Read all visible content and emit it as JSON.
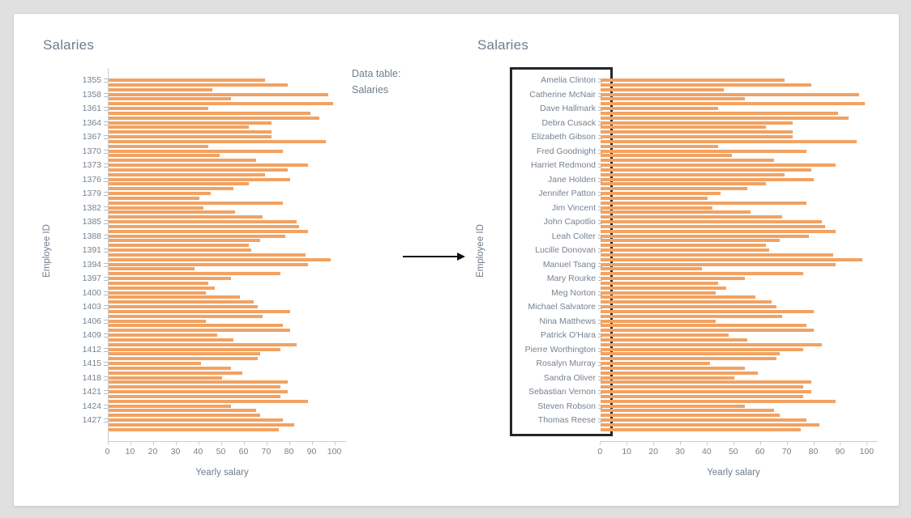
{
  "page": {
    "background": "#e0e0e0",
    "card_background": "#ffffff"
  },
  "colors": {
    "bar": "#f2a262",
    "title": "#6f7d8d",
    "tick_label": "#76828f",
    "axis_line": "#c8cdd2",
    "tick_mark": "#b2bfca",
    "highlight_box": "#23272b",
    "arrow": "#111111"
  },
  "annotation": {
    "line1": "Data table:",
    "line2": "Salaries"
  },
  "left_chart": {
    "title": "Salaries",
    "y_axis_label": "Employee ID",
    "x_axis_label": "Yearly salary"
  },
  "right_chart": {
    "title": "Salaries",
    "y_axis_label": "Employee ID",
    "x_axis_label": "Yearly salary"
  },
  "chart_data": [
    {
      "id": "left",
      "type": "bar",
      "orientation": "horizontal",
      "title": "Salaries",
      "xlabel": "Yearly salary",
      "ylabel": "Employee ID",
      "xlim": [
        0,
        100
      ],
      "x_ticks": [
        0,
        10,
        20,
        30,
        40,
        50,
        60,
        70,
        80,
        90,
        100
      ],
      "grid": false,
      "legend": false,
      "tick_labels": [
        "1355",
        "1358",
        "1361",
        "1364",
        "1367",
        "1370",
        "1373",
        "1376",
        "1379",
        "1382",
        "1385",
        "1388",
        "1391",
        "1394",
        "1397",
        "1400",
        "1403",
        "1406",
        "1409",
        "1412",
        "1415",
        "1418",
        "1421",
        "1424",
        "1427"
      ],
      "label_every": 3,
      "values": [
        69,
        79,
        46,
        97,
        54,
        99,
        44,
        89,
        93,
        72,
        62,
        72,
        72,
        96,
        44,
        77,
        49,
        65,
        88,
        79,
        69,
        80,
        62,
        55,
        45,
        40,
        77,
        42,
        56,
        68,
        83,
        84,
        88,
        78,
        67,
        62,
        63,
        87,
        98,
        88,
        38,
        76,
        54,
        44,
        47,
        43,
        58,
        64,
        66,
        80,
        68,
        43,
        77,
        80,
        48,
        55,
        83,
        76,
        67,
        66,
        41,
        54,
        59,
        50,
        79,
        76,
        79,
        76,
        88,
        54,
        65,
        67,
        77,
        82,
        75
      ]
    },
    {
      "id": "right",
      "type": "bar",
      "orientation": "horizontal",
      "title": "Salaries",
      "xlabel": "Yearly salary",
      "ylabel": "Employee ID",
      "xlim": [
        0,
        100
      ],
      "x_ticks": [
        0,
        10,
        20,
        30,
        40,
        50,
        60,
        70,
        80,
        90,
        100
      ],
      "grid": false,
      "legend": false,
      "highlight_box_around_labels": true,
      "tick_labels": [
        "Amelia Clinton",
        "Catherine McNair",
        "Dave Hallmark",
        "Debra Cusack",
        "Elizabeth Gibson",
        "Fred Goodnight",
        "Harriet Redmond",
        "Jane Holden",
        "Jennifer Patton",
        "Jim Vincent",
        "John Capotlio",
        "Leah Colter",
        "Lucille Donovan",
        "Manuel Tsang",
        "Mary Rourke",
        "Meg Norton",
        "Michael Salvatore",
        "Nina Matthews",
        "Patrick O'Hara",
        "Pierre Worthington",
        "Rosalyn Murray",
        "Sandra Oliver",
        "Sebastian Vernon",
        "Steven Robson",
        "Thomas Reese"
      ],
      "label_every": 3,
      "values": [
        69,
        79,
        46,
        97,
        54,
        99,
        44,
        89,
        93,
        72,
        62,
        72,
        72,
        96,
        44,
        77,
        49,
        65,
        88,
        79,
        69,
        80,
        62,
        55,
        45,
        40,
        77,
        42,
        56,
        68,
        83,
        84,
        88,
        78,
        67,
        62,
        63,
        87,
        98,
        88,
        38,
        76,
        54,
        44,
        47,
        43,
        58,
        64,
        66,
        80,
        68,
        43,
        77,
        80,
        48,
        55,
        83,
        76,
        67,
        66,
        41,
        54,
        59,
        50,
        79,
        76,
        79,
        76,
        88,
        54,
        65,
        67,
        77,
        82,
        75
      ]
    }
  ]
}
